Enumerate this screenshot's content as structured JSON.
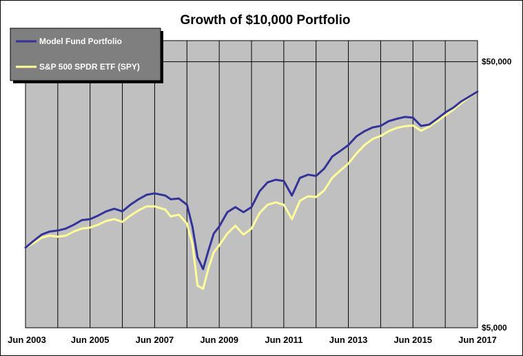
{
  "chart_data": {
    "type": "line",
    "title": "Growth of $10,000 Portfolio",
    "xlabel": "",
    "ylabel": "",
    "y_scale": "log",
    "ylim": [
      5000,
      60000
    ],
    "x_range": [
      2003.5,
      2017.5
    ],
    "x_tick_labels": [
      "Jun 2003",
      "Jun 2005",
      "Jun 2007",
      "Jun 2009",
      "Jun 2011",
      "Jun 2013",
      "Jun 2015",
      "Jun 2017"
    ],
    "x_tick_values": [
      2003.5,
      2005.5,
      2007.5,
      2009.5,
      2011.5,
      2013.5,
      2015.5,
      2017.5
    ],
    "x_gridlines": [
      2004.5,
      2005.5,
      2006.5,
      2007.5,
      2008.5,
      2009.5,
      2010.5,
      2011.5,
      2012.5,
      2013.5,
      2014.5,
      2015.5,
      2016.5,
      2017.5
    ],
    "y_tick_labels": [
      "$50,000",
      "$5,000"
    ],
    "y_tick_values": [
      50000,
      5000
    ],
    "legend": {
      "placement": "top-left",
      "background": "#7f7f7f"
    },
    "plot_background": "#c0c0c0",
    "series": [
      {
        "name": "Model Fund Portfolio",
        "color": "#333399",
        "x": [
          2003.5,
          2003.75,
          2004.0,
          2004.25,
          2004.5,
          2004.75,
          2005.0,
          2005.25,
          2005.5,
          2005.75,
          2006.0,
          2006.25,
          2006.5,
          2006.75,
          2007.0,
          2007.25,
          2007.5,
          2007.83,
          2008.0,
          2008.25,
          2008.5,
          2008.67,
          2008.83,
          2009.0,
          2009.17,
          2009.33,
          2009.5,
          2009.75,
          2010.0,
          2010.25,
          2010.5,
          2010.75,
          2011.0,
          2011.25,
          2011.5,
          2011.75,
          2012.0,
          2012.25,
          2012.5,
          2012.75,
          2013.0,
          2013.25,
          2013.5,
          2013.75,
          2014.0,
          2014.25,
          2014.5,
          2014.75,
          2015.0,
          2015.25,
          2015.5,
          2015.75,
          2016.0,
          2016.25,
          2016.5,
          2016.75,
          2017.0,
          2017.25,
          2017.5
        ],
        "values": [
          10000,
          10600,
          11200,
          11500,
          11600,
          11800,
          12200,
          12700,
          12800,
          13200,
          13700,
          14000,
          13700,
          14500,
          15200,
          15800,
          16000,
          15700,
          15200,
          15300,
          14500,
          12000,
          9200,
          8300,
          9800,
          11300,
          12000,
          13600,
          14200,
          13600,
          14200,
          16300,
          17600,
          18000,
          17800,
          15700,
          18300,
          18800,
          18600,
          19800,
          22000,
          23100,
          24300,
          26200,
          27400,
          28300,
          28700,
          29900,
          30500,
          31000,
          30800,
          28700,
          29000,
          30500,
          32200,
          33600,
          35500,
          37000,
          38600
        ]
      },
      {
        "name": "S&P 500 SPDR ETF (SPY)",
        "color": "#ffff99",
        "x": [
          2003.5,
          2003.75,
          2004.0,
          2004.25,
          2004.5,
          2004.75,
          2005.0,
          2005.25,
          2005.5,
          2005.75,
          2006.0,
          2006.25,
          2006.5,
          2006.75,
          2007.0,
          2007.25,
          2007.5,
          2007.83,
          2008.0,
          2008.25,
          2008.5,
          2008.67,
          2008.83,
          2009.0,
          2009.17,
          2009.33,
          2009.5,
          2009.75,
          2010.0,
          2010.25,
          2010.5,
          2010.75,
          2011.0,
          2011.25,
          2011.5,
          2011.75,
          2012.0,
          2012.25,
          2012.5,
          2012.75,
          2013.0,
          2013.25,
          2013.5,
          2013.75,
          2014.0,
          2014.25,
          2014.5,
          2014.75,
          2015.0,
          2015.25,
          2015.5,
          2015.75,
          2016.0,
          2016.25,
          2016.5,
          2016.75,
          2017.0,
          2017.25,
          2017.5
        ],
        "values": [
          10000,
          10400,
          10900,
          11100,
          11000,
          11100,
          11500,
          11800,
          11900,
          12200,
          12600,
          12800,
          12500,
          13200,
          13800,
          14300,
          14300,
          13900,
          13100,
          13300,
          12300,
          10300,
          7200,
          7000,
          8400,
          9600,
          10200,
          11300,
          12100,
          11200,
          11800,
          13500,
          14500,
          14800,
          14500,
          12800,
          15000,
          15600,
          15500,
          16400,
          18300,
          19500,
          20700,
          22600,
          24300,
          25600,
          26300,
          27400,
          28200,
          28600,
          28800,
          27500,
          28500,
          29900,
          31400,
          33000,
          35000,
          36800,
          38600
        ]
      }
    ]
  }
}
